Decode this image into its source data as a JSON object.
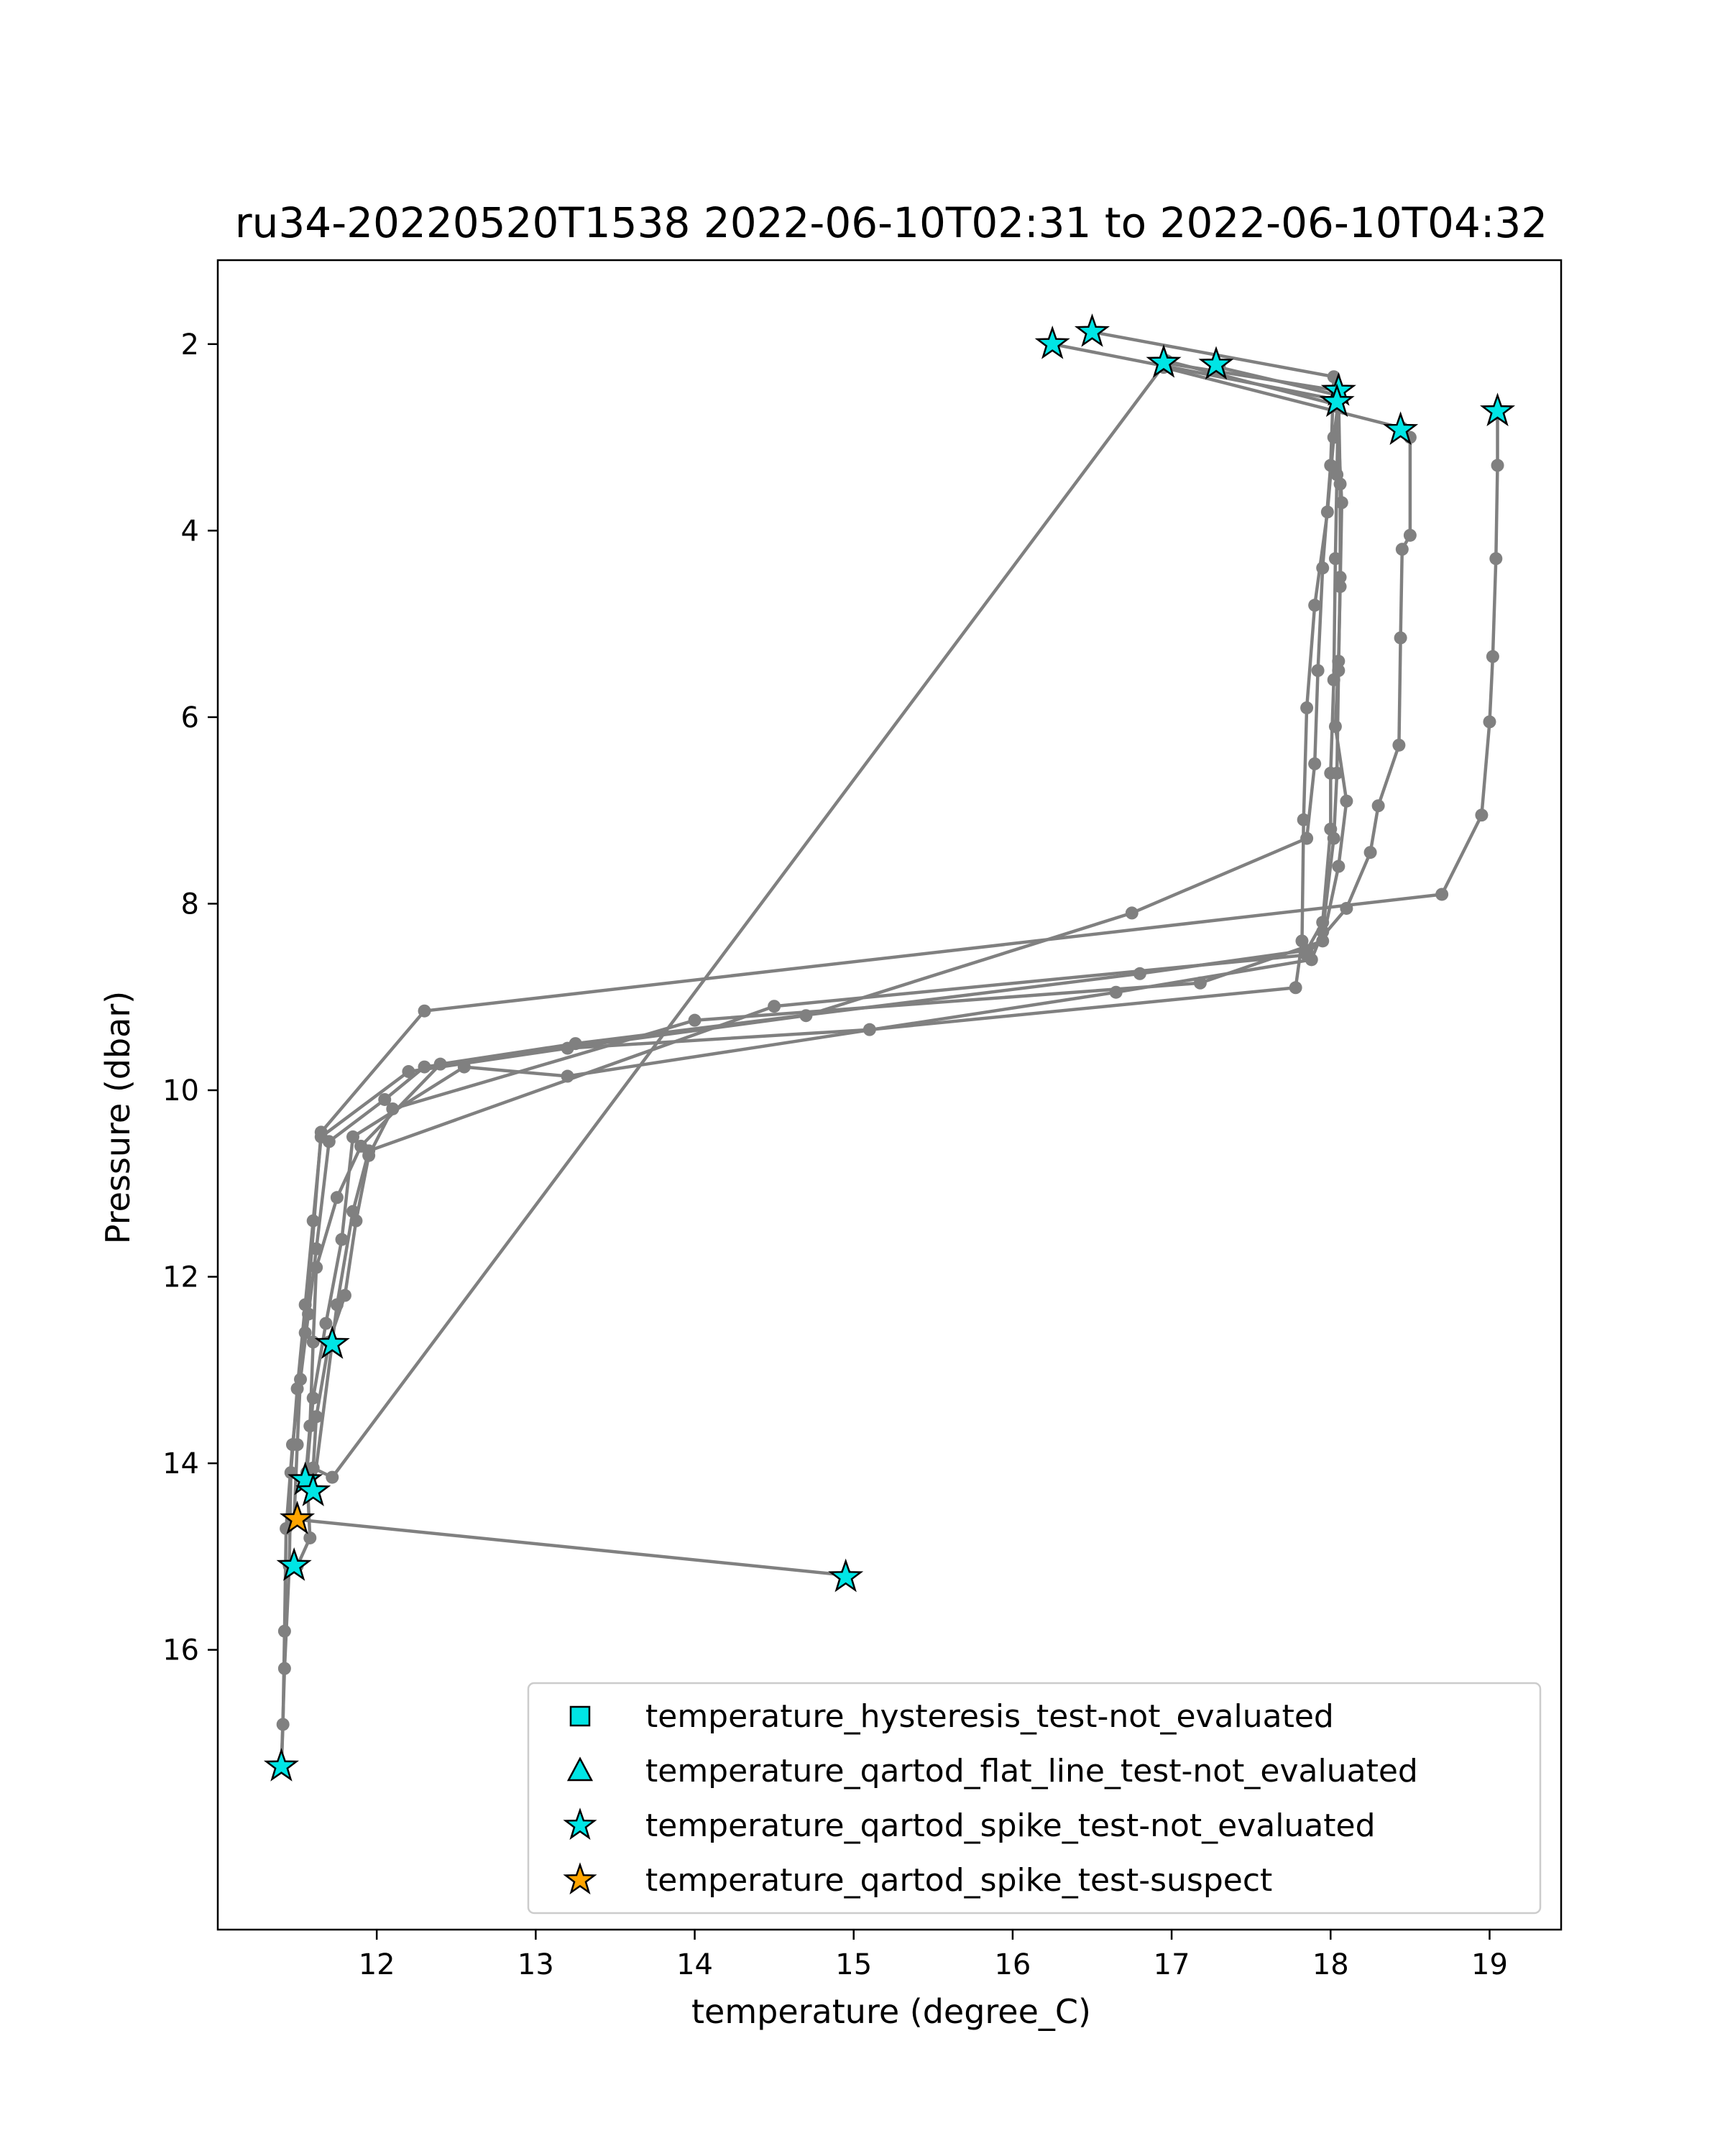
{
  "chart_data": {
    "type": "line",
    "title": "ru34-20220520T1538 2022-06-10T02:31 to 2022-06-10T04:32",
    "xlabel": "temperature (degree_C)",
    "ylabel": "Pressure (dbar)",
    "xlim": [
      11.0,
      19.45
    ],
    "ylim": [
      19.0,
      1.1
    ],
    "y_inverted": true,
    "x_ticks": [
      12,
      13,
      14,
      15,
      16,
      17,
      18,
      19
    ],
    "y_ticks": [
      2,
      4,
      6,
      8,
      10,
      12,
      14,
      16
    ],
    "grid": false,
    "legend_position": "lower-right",
    "line_color": "#808080",
    "profiles": [
      {
        "points": [
          [
            16.25,
            2.0
          ],
          [
            18.05,
            2.6
          ],
          [
            18.02,
            3.0
          ],
          [
            17.98,
            3.8
          ],
          [
            17.9,
            4.8
          ],
          [
            17.85,
            5.9
          ],
          [
            17.83,
            7.1
          ],
          [
            17.82,
            8.4
          ],
          [
            17.78,
            8.9
          ],
          [
            15.1,
            9.35
          ],
          [
            13.2,
            9.55
          ],
          [
            12.2,
            9.8
          ],
          [
            11.65,
            10.5
          ],
          [
            11.6,
            11.4
          ],
          [
            11.55,
            12.3
          ],
          [
            11.5,
            13.2
          ],
          [
            11.46,
            14.1
          ],
          [
            11.45,
            15.1
          ],
          [
            11.42,
            16.2
          ],
          [
            11.4,
            17.25
          ]
        ]
      },
      {
        "points": [
          [
            16.5,
            1.87
          ],
          [
            18.02,
            2.35
          ],
          [
            18.0,
            3.3
          ],
          [
            17.95,
            4.4
          ],
          [
            17.92,
            5.5
          ],
          [
            17.9,
            6.5
          ],
          [
            17.85,
            7.3
          ],
          [
            16.75,
            8.1
          ],
          [
            14.7,
            9.2
          ],
          [
            12.3,
            9.75
          ],
          [
            12.05,
            10.1
          ],
          [
            11.7,
            10.55
          ],
          [
            11.62,
            11.7
          ],
          [
            11.57,
            12.4
          ],
          [
            11.52,
            13.1
          ],
          [
            11.5,
            13.8
          ],
          [
            11.48,
            14.6
          ],
          [
            14.95,
            15.2
          ]
        ]
      },
      {
        "points": [
          [
            16.95,
            2.2
          ],
          [
            18.05,
            2.5
          ],
          [
            18.04,
            3.4
          ],
          [
            18.03,
            4.3
          ],
          [
            18.02,
            5.6
          ],
          [
            18.0,
            6.6
          ],
          [
            18.0,
            7.2
          ],
          [
            17.95,
            8.2
          ],
          [
            17.85,
            8.5
          ],
          [
            16.8,
            8.75
          ],
          [
            13.25,
            9.5
          ],
          [
            12.4,
            9.72
          ],
          [
            11.9,
            10.6
          ],
          [
            11.75,
            11.15
          ],
          [
            11.62,
            11.9
          ],
          [
            11.6,
            12.7
          ],
          [
            11.58,
            13.6
          ],
          [
            11.55,
            14.2
          ]
        ]
      },
      {
        "points": [
          [
            17.3,
            2.25
          ],
          [
            18.05,
            2.55
          ],
          [
            18.06,
            3.5
          ],
          [
            18.06,
            4.5
          ],
          [
            18.05,
            5.5
          ],
          [
            18.04,
            6.6
          ],
          [
            18.02,
            7.3
          ],
          [
            17.95,
            8.3
          ],
          [
            17.88,
            8.6
          ],
          [
            16.65,
            8.95
          ],
          [
            13.2,
            9.85
          ],
          [
            12.55,
            9.75
          ],
          [
            11.85,
            10.5
          ],
          [
            11.78,
            11.6
          ],
          [
            11.68,
            12.5
          ],
          [
            11.6,
            13.3
          ],
          [
            11.56,
            14.1
          ],
          [
            11.58,
            14.8
          ],
          [
            11.5,
            15.1
          ]
        ]
      },
      {
        "points": [
          [
            16.97,
            2.18
          ],
          [
            18.04,
            2.65
          ],
          [
            18.07,
            3.7
          ],
          [
            18.06,
            4.6
          ],
          [
            18.05,
            5.4
          ],
          [
            18.03,
            6.1
          ],
          [
            18.1,
            6.9
          ],
          [
            18.05,
            7.6
          ],
          [
            17.95,
            8.4
          ],
          [
            17.18,
            8.85
          ],
          [
            14.0,
            9.25
          ],
          [
            12.1,
            10.2
          ],
          [
            11.95,
            10.7
          ],
          [
            11.87,
            11.4
          ],
          [
            11.8,
            12.2
          ],
          [
            11.7,
            12.7
          ],
          [
            11.62,
            13.5
          ],
          [
            11.6,
            14.05
          ],
          [
            11.72,
            14.15
          ],
          [
            16.97,
            2.18
          ]
        ]
      },
      {
        "points": [
          [
            16.95,
            2.25
          ],
          [
            18.45,
            2.9
          ],
          [
            18.5,
            3.0
          ],
          [
            18.5,
            4.05
          ],
          [
            18.45,
            4.2
          ],
          [
            18.44,
            5.15
          ],
          [
            18.43,
            6.3
          ],
          [
            18.3,
            6.95
          ],
          [
            18.25,
            7.45
          ],
          [
            18.1,
            8.05
          ],
          [
            17.85,
            8.55
          ],
          [
            14.5,
            9.1
          ],
          [
            11.95,
            10.65
          ],
          [
            11.85,
            11.3
          ],
          [
            11.75,
            12.3
          ],
          [
            11.72,
            12.7
          ],
          [
            11.6,
            14.3
          ],
          [
            11.55,
            14.2
          ]
        ]
      },
      {
        "points": [
          [
            19.05,
            2.72
          ],
          [
            19.05,
            3.3
          ],
          [
            19.04,
            4.3
          ],
          [
            19.02,
            5.35
          ],
          [
            19.0,
            6.05
          ],
          [
            18.95,
            7.05
          ],
          [
            18.7,
            7.9
          ],
          [
            12.3,
            9.15
          ],
          [
            11.65,
            10.45
          ],
          [
            11.55,
            12.6
          ],
          [
            11.47,
            13.8
          ],
          [
            11.43,
            14.7
          ],
          [
            11.42,
            15.8
          ],
          [
            11.41,
            16.8
          ],
          [
            11.4,
            17.25
          ]
        ]
      }
    ],
    "flag_markers": [
      {
        "series": "temperature_qartod_spike_test-not_evaluated",
        "x": 16.25,
        "y": 2.0
      },
      {
        "series": "temperature_qartod_spike_test-not_evaluated",
        "x": 16.5,
        "y": 1.87
      },
      {
        "series": "temperature_qartod_spike_test-not_evaluated",
        "x": 16.95,
        "y": 2.2
      },
      {
        "series": "temperature_qartod_spike_test-not_evaluated",
        "x": 17.28,
        "y": 2.22
      },
      {
        "series": "temperature_qartod_spike_test-not_evaluated",
        "x": 18.05,
        "y": 2.5
      },
      {
        "series": "temperature_qartod_spike_test-not_evaluated",
        "x": 18.04,
        "y": 2.62
      },
      {
        "series": "temperature_qartod_spike_test-not_evaluated",
        "x": 18.44,
        "y": 2.92
      },
      {
        "series": "temperature_qartod_spike_test-not_evaluated",
        "x": 19.05,
        "y": 2.72
      },
      {
        "series": "temperature_qartod_spike_test-not_evaluated",
        "x": 11.72,
        "y": 12.72
      },
      {
        "series": "temperature_qartod_spike_test-not_evaluated",
        "x": 11.55,
        "y": 14.18
      },
      {
        "series": "temperature_qartod_spike_test-not_evaluated",
        "x": 11.6,
        "y": 14.3
      },
      {
        "series": "temperature_qartod_spike_test-not_evaluated",
        "x": 11.48,
        "y": 15.1
      },
      {
        "series": "temperature_qartod_spike_test-not_evaluated",
        "x": 14.95,
        "y": 15.22
      },
      {
        "series": "temperature_qartod_spike_test-not_evaluated",
        "x": 11.4,
        "y": 17.25
      },
      {
        "series": "temperature_qartod_spike_test-suspect",
        "x": 11.5,
        "y": 14.6
      }
    ],
    "legend": [
      {
        "label": "temperature_hysteresis_test-not_evaluated",
        "marker": "square",
        "color": "#00e5e5"
      },
      {
        "label": "temperature_qartod_flat_line_test-not_evaluated",
        "marker": "triangle",
        "color": "#00e5e5"
      },
      {
        "label": "temperature_qartod_spike_test-not_evaluated",
        "marker": "star",
        "color": "#00e5e5"
      },
      {
        "label": "temperature_qartod_spike_test-suspect",
        "marker": "star",
        "color": "#ffa500"
      }
    ]
  }
}
